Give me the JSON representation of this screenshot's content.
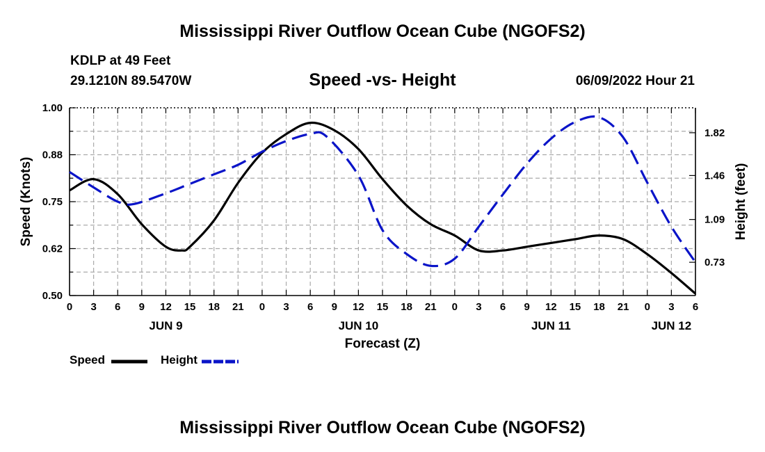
{
  "title": "Mississippi River Outflow Ocean Cube (NGOFS2)",
  "station": {
    "name": "KDLP at 49 Feet",
    "coords": "29.1210N  89.5470W"
  },
  "subtitle": "Speed -vs- Height",
  "datetime": "06/09/2022 Hour 21",
  "bottom_title": "Mississippi River Outflow Ocean Cube (NGOFS2)",
  "legend": {
    "speed_label": "Speed",
    "height_label": "Height"
  },
  "colors": {
    "speed": "#000000",
    "height": "#0a14c8",
    "grid": "#aaaaaa"
  },
  "chart_data": {
    "type": "line",
    "title": "Speed -vs- Height",
    "xlabel": "Forecast (Z)",
    "ylabel": "Speed (Knots)",
    "y2label": "Height (feet)",
    "xlim": [
      0,
      78
    ],
    "ylim": [
      0.5,
      1.0
    ],
    "y2lim": [
      0.45,
      2.03
    ],
    "yticks": [
      "0.50",
      "0.62",
      "0.75",
      "0.88",
      "1.00"
    ],
    "y2ticks": [
      "0.73",
      "1.09",
      "1.46",
      "1.82"
    ],
    "xtick_labels": [
      "0",
      "3",
      "6",
      "9",
      "12",
      "15",
      "18",
      "21",
      "0",
      "3",
      "6",
      "9",
      "12",
      "15",
      "18",
      "21",
      "0",
      "3",
      "6",
      "9",
      "12",
      "15",
      "18",
      "21",
      "0",
      "3",
      "6"
    ],
    "day_labels": [
      {
        "hour": 12,
        "label": "JUN 9"
      },
      {
        "hour": 36,
        "label": "JUN 10"
      },
      {
        "hour": 60,
        "label": "JUN 11"
      },
      {
        "hour": 75,
        "label": "JUN 12"
      }
    ],
    "series": [
      {
        "name": "Speed",
        "axis": "left",
        "style": "solid",
        "points": [
          [
            0,
            0.78
          ],
          [
            3,
            0.81
          ],
          [
            6,
            0.77
          ],
          [
            9,
            0.69
          ],
          [
            12,
            0.63
          ],
          [
            14,
            0.62
          ],
          [
            15,
            0.63
          ],
          [
            18,
            0.7
          ],
          [
            21,
            0.8
          ],
          [
            24,
            0.88
          ],
          [
            27,
            0.93
          ],
          [
            30,
            0.96
          ],
          [
            33,
            0.94
          ],
          [
            36,
            0.89
          ],
          [
            39,
            0.81
          ],
          [
            42,
            0.74
          ],
          [
            45,
            0.69
          ],
          [
            48,
            0.66
          ],
          [
            51,
            0.62
          ],
          [
            54,
            0.62
          ],
          [
            57,
            0.63
          ],
          [
            60,
            0.64
          ],
          [
            63,
            0.65
          ],
          [
            66,
            0.66
          ],
          [
            69,
            0.65
          ],
          [
            72,
            0.61
          ],
          [
            75,
            0.56
          ],
          [
            78,
            0.505
          ]
        ]
      },
      {
        "name": "Height",
        "axis": "right",
        "style": "dashed",
        "points": [
          [
            0,
            1.49
          ],
          [
            3,
            1.36
          ],
          [
            6,
            1.24
          ],
          [
            8,
            1.22
          ],
          [
            12,
            1.31
          ],
          [
            15,
            1.39
          ],
          [
            18,
            1.47
          ],
          [
            21,
            1.55
          ],
          [
            24,
            1.66
          ],
          [
            27,
            1.75
          ],
          [
            30,
            1.81
          ],
          [
            32,
            1.79
          ],
          [
            36,
            1.46
          ],
          [
            39,
            1.0
          ],
          [
            42,
            0.8
          ],
          [
            45,
            0.7
          ],
          [
            48,
            0.76
          ],
          [
            51,
            1.03
          ],
          [
            54,
            1.3
          ],
          [
            57,
            1.56
          ],
          [
            60,
            1.77
          ],
          [
            63,
            1.91
          ],
          [
            66,
            1.95
          ],
          [
            69,
            1.78
          ],
          [
            72,
            1.4
          ],
          [
            75,
            1.03
          ],
          [
            78,
            0.73
          ]
        ]
      }
    ]
  }
}
